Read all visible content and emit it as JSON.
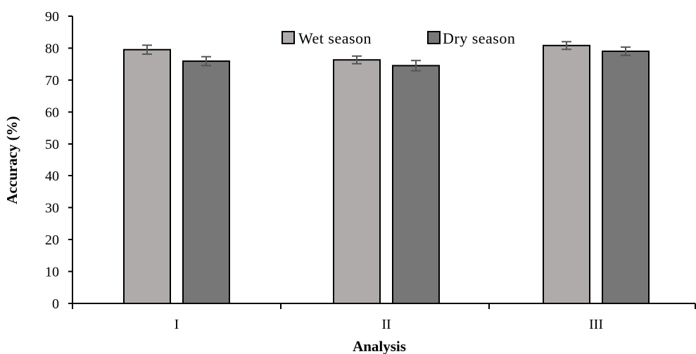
{
  "chart_data": {
    "type": "bar",
    "categories": [
      "I",
      "II",
      "III"
    ],
    "series": [
      {
        "name": "Wet season",
        "values": [
          79.5,
          76.3,
          80.8
        ],
        "errors": [
          1.4,
          1.2,
          1.2
        ],
        "color": "#b0abab"
      },
      {
        "name": "Dry season",
        "values": [
          75.9,
          74.5,
          79.0
        ],
        "errors": [
          1.4,
          1.6,
          1.3
        ],
        "color": "#777777"
      }
    ],
    "xlabel": "Analysis",
    "ylabel": "Accuracy (%)",
    "ylim": [
      0,
      90
    ],
    "yticks": [
      "0",
      "10",
      "20",
      "30",
      "40",
      "50",
      "60",
      "70",
      "80",
      "90"
    ],
    "grid": false,
    "legend_placement": "top-center",
    "error_bar_color": "#555555",
    "axis_color": "#000000"
  }
}
